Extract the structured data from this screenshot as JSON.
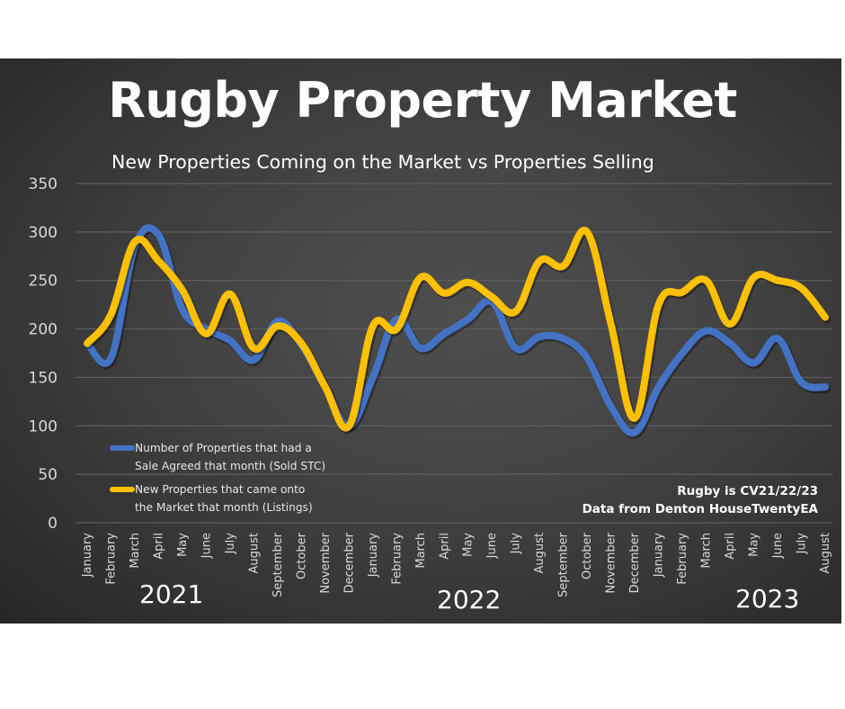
{
  "chart_data": {
    "type": "line",
    "title": "Rugby Property Market",
    "subtitle": "New Properties Coming on the Market vs Properties Selling",
    "xlabel": "",
    "ylabel": "",
    "ylim": [
      0,
      350
    ],
    "yticks": [
      0,
      50,
      100,
      150,
      200,
      250,
      300,
      350
    ],
    "grid": true,
    "legend_position": "bottom-left",
    "categories": [
      "January",
      "February",
      "March",
      "April",
      "May",
      "June",
      "July",
      "August",
      "September",
      "October",
      "November",
      "December",
      "January",
      "February",
      "March",
      "April",
      "May",
      "June",
      "July",
      "August",
      "September",
      "October",
      "November",
      "December",
      "January",
      "February",
      "March",
      "April",
      "May",
      "June",
      "July",
      "August"
    ],
    "years": [
      {
        "label": "2021",
        "from_index": 0
      },
      {
        "label": "2022",
        "from_index": 12
      },
      {
        "label": "2023",
        "from_index": 24
      }
    ],
    "series": [
      {
        "name": "Number of Properties that had a Sale Agreed that month (Sold STC)",
        "legend_lines": [
          "Number of Properties that had a",
          "Sale Agreed that month (Sold STC)"
        ],
        "color": "#4472c4",
        "values": [
          185,
          170,
          285,
          297,
          220,
          200,
          188,
          168,
          208,
          183,
          140,
          100,
          150,
          210,
          180,
          195,
          210,
          228,
          180,
          192,
          190,
          170,
          120,
          93,
          140,
          175,
          198,
          185,
          165,
          190,
          145,
          140
        ]
      },
      {
        "name": "New Properties that came onto the Market that month (Listings)",
        "legend_lines": [
          "New Properties that came onto",
          "the Market that month  (Listings)"
        ],
        "color": "#ffc000",
        "values": [
          185,
          215,
          290,
          270,
          240,
          195,
          236,
          180,
          203,
          185,
          140,
          100,
          203,
          200,
          253,
          237,
          248,
          233,
          218,
          270,
          265,
          300,
          205,
          108,
          225,
          238,
          250,
          205,
          253,
          250,
          242,
          212
        ]
      }
    ],
    "annotations": [
      "Rugby is CV21/22/23",
      "Data from Denton HouseTwentyEA"
    ]
  }
}
